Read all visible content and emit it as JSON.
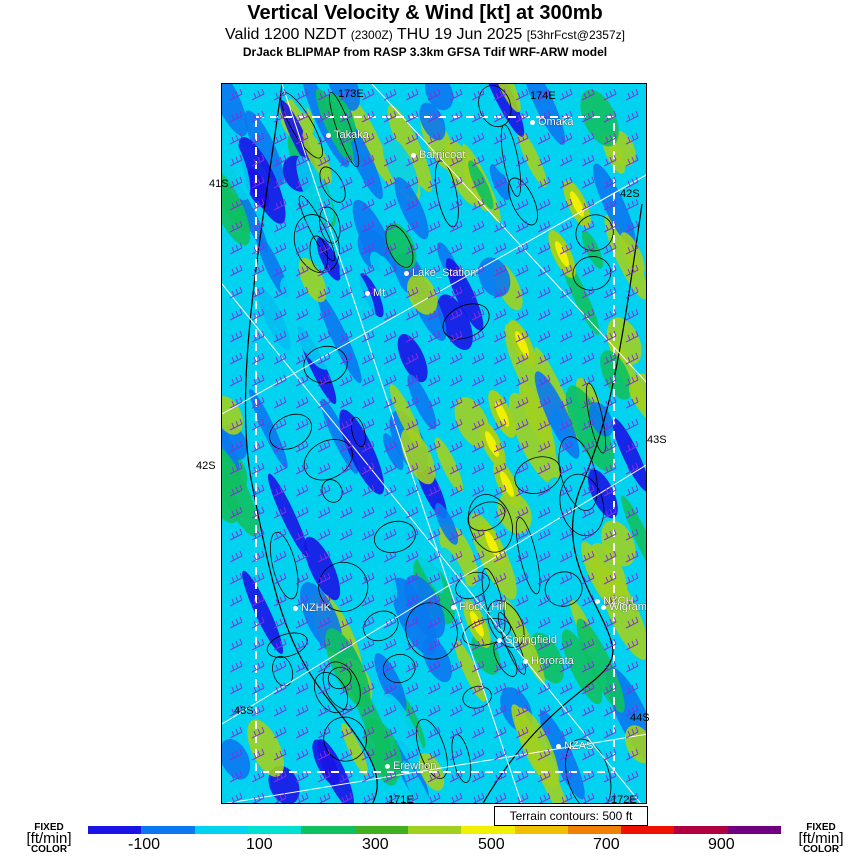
{
  "title": "Vertical Velocity & Wind [kt] at 300mb",
  "subtitle_main": "Valid 1200 NZDT",
  "subtitle_utc": "(2300Z)",
  "subtitle_date": "THU 19 Jun 2025",
  "subtitle_fcst": "[53hrFcst@2357z]",
  "credit": "DrJack BLIPMAP from RASP 3.3km GFSA Tdif WRF-ARW model",
  "grid_labels": {
    "top": [
      "173E",
      "174E"
    ],
    "left": [
      "41S",
      "42S",
      "43S"
    ],
    "right": [
      "42S",
      "43S",
      "44S"
    ],
    "bottom": [
      "171E",
      "172E"
    ]
  },
  "places": [
    "Takaka",
    "Omaka",
    "Barnicoat",
    "Lake_Station",
    "Mt",
    "NZHK",
    "Flock_Hill",
    "NZCH",
    "Wigram",
    "Springfield",
    "Hororata",
    "NZAS",
    "Erewhon"
  ],
  "terrain_note": "Terrain contours: 500 ft",
  "legend": {
    "fixed_top": "FIXED",
    "units": "[ft/min]",
    "fixed_bottom": "COLOR",
    "tick_labels": [
      "-100",
      "100",
      "300",
      "500",
      "700",
      "900"
    ],
    "colors": [
      "#1a14e6",
      "#0a78f0",
      "#00d2f0",
      "#00e0d0",
      "#10c060",
      "#40b020",
      "#a0d020",
      "#f0f000",
      "#f0c000",
      "#f08000",
      "#f01000",
      "#b00040",
      "#700080"
    ]
  },
  "field_colors": {
    "strong_down": "#1a14e6",
    "weak_down": "#0a78f0",
    "neutral": "#00d2f0",
    "weak_up": "#10c060",
    "up": "#a0d020",
    "strong_up": "#f0f000",
    "wind_barb": "#8a2be2"
  }
}
